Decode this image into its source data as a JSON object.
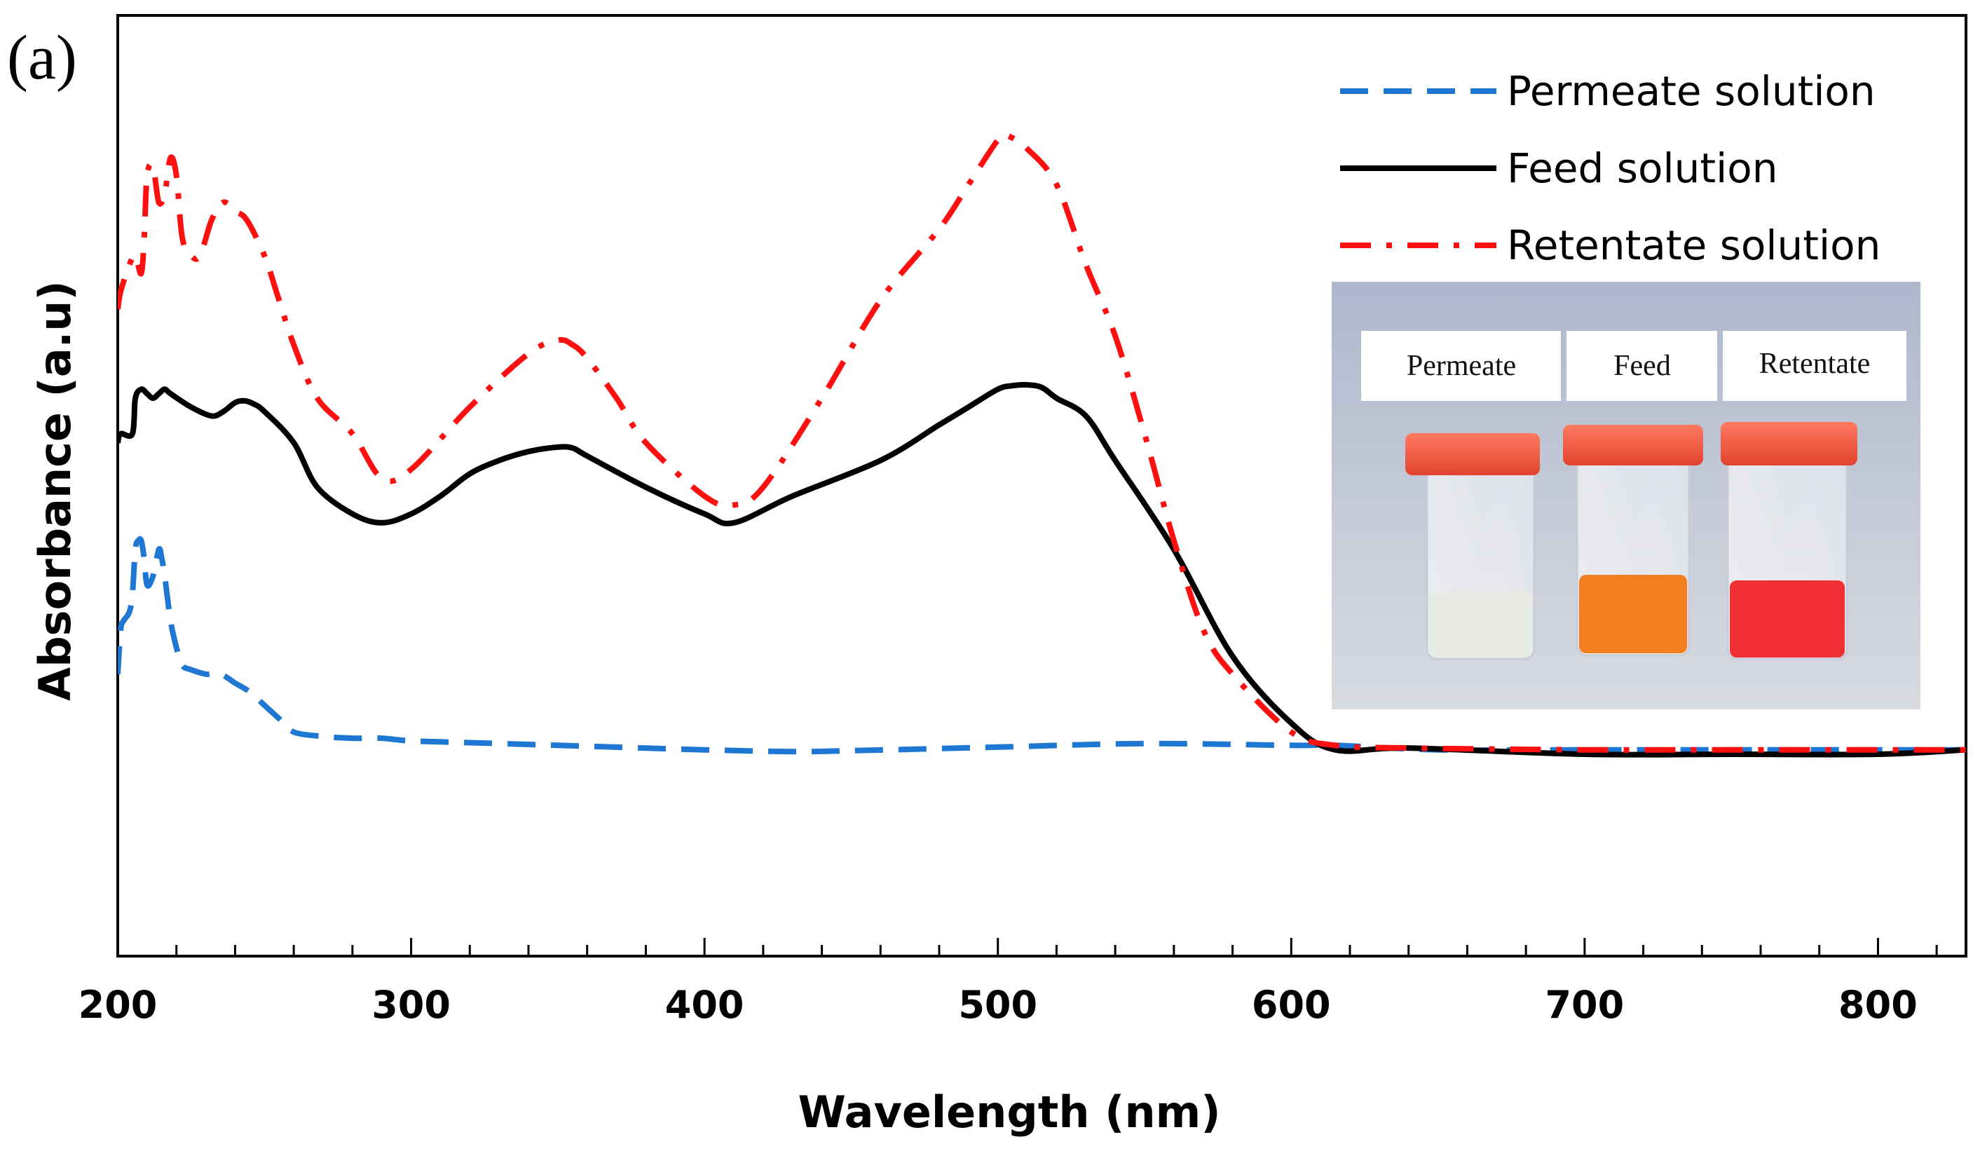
{
  "panel_label": "(a)",
  "chart_data": {
    "type": "line",
    "title": "",
    "xlabel": "Wavelength (nm)",
    "ylabel": "Absorbance (a.u)",
    "xlim": [
      200,
      830
    ],
    "ylim": [
      0,
      1
    ],
    "x_ticks": [
      200,
      300,
      400,
      500,
      600,
      700,
      800
    ],
    "x_tick_labels": [
      "200",
      "300",
      "400",
      "500",
      "600",
      "700",
      "800"
    ],
    "y_tick_labels": [],
    "grid": false,
    "legend_position": "top-right",
    "series": [
      {
        "name": "Permeate solution",
        "color": "#1f77d4",
        "style": "dashed",
        "x": [
          200,
          201,
          202,
          204,
          205,
          206,
          207,
          208,
          209,
          210,
          212,
          214,
          215,
          216,
          218,
          220,
          222,
          225,
          230,
          235,
          240,
          245,
          250,
          255,
          260,
          270,
          280,
          290,
          300,
          320,
          350,
          400,
          430,
          450,
          500,
          550,
          600,
          615,
          650,
          700,
          750,
          800,
          830
        ],
        "y": [
          0.29,
          0.34,
          0.35,
          0.36,
          0.38,
          0.43,
          0.44,
          0.44,
          0.42,
          0.39,
          0.4,
          0.43,
          0.42,
          0.4,
          0.35,
          0.32,
          0.3,
          0.295,
          0.29,
          0.29,
          0.28,
          0.27,
          0.255,
          0.24,
          0.225,
          0.22,
          0.218,
          0.218,
          0.215,
          0.213,
          0.21,
          0.205,
          0.203,
          0.204,
          0.208,
          0.212,
          0.21,
          0.21,
          0.205,
          0.205,
          0.205,
          0.205,
          0.205
        ]
      },
      {
        "name": "Feed solution",
        "color": "#000000",
        "style": "solid",
        "x": [
          200,
          201,
          205,
          206,
          208,
          210,
          212,
          214,
          216,
          218,
          225,
          232,
          236,
          240,
          243,
          246,
          250,
          260,
          268,
          280,
          290,
          300,
          310,
          320,
          330,
          340,
          350,
          355,
          360,
          380,
          400,
          410,
          430,
          460,
          480,
          490,
          500,
          505,
          510,
          515,
          520,
          530,
          540,
          560,
          580,
          600,
          615,
          640,
          700,
          750,
          800,
          830
        ],
        "y": [
          0.55,
          0.56,
          0.56,
          0.6,
          0.61,
          0.605,
          0.6,
          0.605,
          0.61,
          0.605,
          0.59,
          0.58,
          0.585,
          0.595,
          0.597,
          0.594,
          0.585,
          0.55,
          0.5,
          0.47,
          0.46,
          0.47,
          0.49,
          0.515,
          0.53,
          0.54,
          0.545,
          0.544,
          0.535,
          0.5,
          0.47,
          0.46,
          0.49,
          0.53,
          0.57,
          0.59,
          0.61,
          0.614,
          0.615,
          0.612,
          0.6,
          0.58,
          0.53,
          0.43,
          0.31,
          0.235,
          0.205,
          0.207,
          0.2,
          0.2,
          0.2,
          0.205
        ]
      },
      {
        "name": "Retentate solution",
        "color": "#ff1010",
        "style": "dashdot",
        "x": [
          200,
          201,
          204,
          206,
          208,
          209,
          210,
          212,
          214,
          216,
          218,
          220,
          222,
          225,
          228,
          232,
          236,
          240,
          244,
          250,
          255,
          260,
          268,
          280,
          290,
          300,
          320,
          340,
          350,
          355,
          360,
          370,
          380,
          400,
          410,
          420,
          440,
          460,
          480,
          490,
          500,
          503,
          510,
          520,
          530,
          540,
          550,
          560,
          570,
          580,
          600,
          615,
          640,
          700,
          750,
          800,
          830
        ],
        "y": [
          0.7,
          0.72,
          0.75,
          0.76,
          0.74,
          0.78,
          0.85,
          0.86,
          0.82,
          0.83,
          0.87,
          0.85,
          0.78,
          0.76,
          0.76,
          0.8,
          0.82,
          0.81,
          0.8,
          0.76,
          0.71,
          0.66,
          0.6,
          0.56,
          0.51,
          0.52,
          0.59,
          0.65,
          0.665,
          0.66,
          0.645,
          0.6,
          0.55,
          0.49,
          0.48,
          0.5,
          0.6,
          0.71,
          0.79,
          0.84,
          0.89,
          0.895,
          0.88,
          0.84,
          0.75,
          0.67,
          0.56,
          0.44,
          0.34,
          0.29,
          0.225,
          0.21,
          0.207,
          0.205,
          0.205,
          0.205,
          0.205
        ]
      }
    ]
  },
  "inset_photo": {
    "labels": [
      "Permeate",
      "Feed",
      "Retentate"
    ],
    "cap_color": "#f2513a",
    "liquid_colors": [
      "#e9ebe4",
      "#f27e1f",
      "#ef2f34"
    ]
  }
}
